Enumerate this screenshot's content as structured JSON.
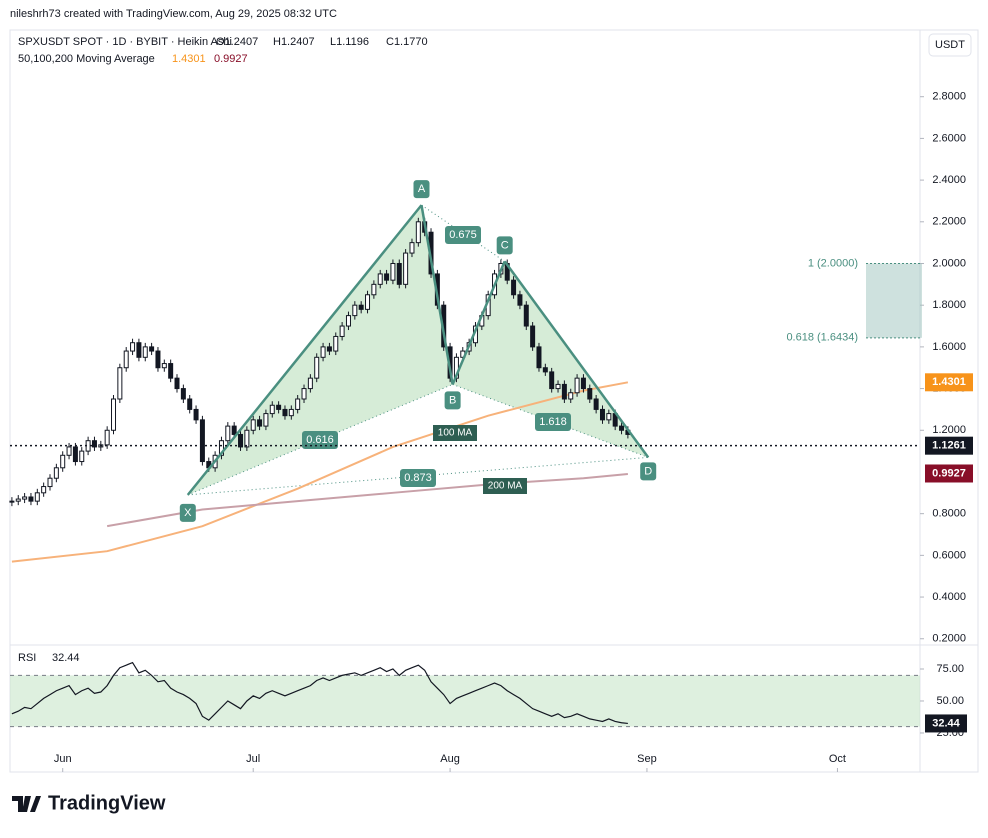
{
  "header": {
    "credit": "nileshrh73 created with TradingView.com, Aug 29, 2025 08:32 UTC",
    "symbol": "SPXUSDT SPOT · 1D · BYBIT · Heikin Ashi",
    "open": "O1.2407",
    "high": "H1.2407",
    "low": "L1.1196",
    "close": "C1.1770",
    "ma_label": "50,100,200 Moving Average",
    "currency": "USDT",
    "logo": "TradingView"
  },
  "chart_data": [
    {
      "type": "candlestick",
      "xlim": [
        -0.3,
        143
      ],
      "ylim": [
        0.17,
        3.12
      ],
      "xticks": [
        {
          "value": 8,
          "label": "Jun"
        },
        {
          "value": 38,
          "label": "Jul"
        },
        {
          "value": 69,
          "label": "Aug"
        },
        {
          "value": 100,
          "label": "Sep"
        },
        {
          "value": 130,
          "label": "Oct"
        }
      ],
      "yticks": [
        {
          "value": 0.2,
          "label": "0.2000"
        },
        {
          "value": 0.4,
          "label": "0.4000"
        },
        {
          "value": 0.6,
          "label": "0.6000"
        },
        {
          "value": 0.8,
          "label": "0.8000"
        },
        {
          "value": 1.2,
          "label": "1.2000"
        },
        {
          "value": 1.4,
          "label": "1.4000"
        },
        {
          "value": 1.6,
          "label": "1.6000"
        },
        {
          "value": 1.8,
          "label": "1.8000"
        },
        {
          "value": 2.0,
          "label": "2.0000"
        },
        {
          "value": 2.2,
          "label": "2.2000"
        },
        {
          "value": 2.4,
          "label": "2.4000"
        },
        {
          "value": 2.6,
          "label": "2.6000"
        },
        {
          "value": 2.8,
          "label": "2.8000"
        }
      ],
      "closes": [
        0.86,
        0.87,
        0.88,
        0.86,
        0.9,
        0.93,
        0.97,
        1.02,
        1.08,
        1.12,
        1.05,
        1.1,
        1.15,
        1.12,
        1.13,
        1.2,
        1.35,
        1.5,
        1.58,
        1.62,
        1.55,
        1.6,
        1.58,
        1.5,
        1.52,
        1.45,
        1.4,
        1.35,
        1.3,
        1.25,
        1.05,
        1.02,
        1.08,
        1.15,
        1.22,
        1.18,
        1.12,
        1.2,
        1.25,
        1.22,
        1.28,
        1.32,
        1.3,
        1.27,
        1.3,
        1.35,
        1.4,
        1.45,
        1.55,
        1.6,
        1.58,
        1.65,
        1.7,
        1.75,
        1.8,
        1.78,
        1.85,
        1.9,
        1.95,
        1.92,
        2.0,
        1.9,
        2.05,
        2.1,
        2.2,
        2.15,
        1.95,
        1.8,
        1.6,
        1.45,
        1.55,
        1.58,
        1.62,
        1.7,
        1.75,
        1.85,
        1.95,
        2.0,
        1.92,
        1.85,
        1.8,
        1.7,
        1.6,
        1.5,
        1.48,
        1.4,
        1.42,
        1.35,
        1.38,
        1.45,
        1.4,
        1.35,
        1.3,
        1.25,
        1.28,
        1.22,
        1.2,
        1.18
      ],
      "up_color": "#ffffff",
      "down_color": "#131722",
      "moving_averages": [
        {
          "name": "100 MA",
          "color": "#f7b27a",
          "value": 1.4301,
          "x": [
            0,
            15,
            30,
            45,
            60,
            75,
            90,
            97
          ],
          "values": [
            0.57,
            0.62,
            0.74,
            0.92,
            1.12,
            1.27,
            1.39,
            1.43
          ]
        },
        {
          "name": "200 MA",
          "color": "#c8a0a8",
          "value": 0.9927,
          "x": [
            15,
            30,
            45,
            60,
            75,
            90,
            97
          ],
          "values": [
            0.74,
            0.82,
            0.86,
            0.9,
            0.94,
            0.97,
            0.99
          ]
        }
      ],
      "last_price": 1.1261,
      "pattern": {
        "points": [
          {
            "label": "X",
            "x": 27.7,
            "y": 0.89
          },
          {
            "label": "A",
            "x": 64.5,
            "y": 2.28
          },
          {
            "label": "B",
            "x": 69.4,
            "y": 1.42
          },
          {
            "label": "C",
            "x": 77.6,
            "y": 2.01
          },
          {
            "label": "D",
            "x": 100.2,
            "y": 1.07
          }
        ],
        "ratios": [
          0.616,
          0.675,
          1.618,
          0.873
        ]
      },
      "targets": [
        {
          "value": 2.0,
          "label": "1 (2.0000)"
        },
        {
          "value": 1.6434,
          "label": "0.618 (1.6434)"
        }
      ]
    },
    {
      "type": "line",
      "title": "RSI",
      "current": 32.44,
      "xlim": [
        -0.3,
        143
      ],
      "ylim": [
        15.6,
        91.4
      ],
      "yticks": [
        {
          "value": 75,
          "label": "75.00"
        },
        {
          "value": 50,
          "label": "50.00"
        },
        {
          "value": 25,
          "label": "25.00"
        }
      ],
      "band": [
        30,
        70
      ],
      "color": "#131722",
      "values": [
        40,
        42,
        45,
        44,
        48,
        52,
        55,
        58,
        60,
        62,
        55,
        58,
        60,
        56,
        57,
        62,
        70,
        76,
        78,
        80,
        72,
        74,
        70,
        65,
        66,
        60,
        57,
        55,
        52,
        48,
        38,
        35,
        40,
        45,
        50,
        47,
        44,
        50,
        54,
        52,
        56,
        58,
        56,
        54,
        56,
        58,
        60,
        62,
        66,
        68,
        66,
        68,
        70,
        71,
        72,
        70,
        72,
        74,
        76,
        73,
        75,
        70,
        74,
        76,
        78,
        74,
        65,
        60,
        55,
        48,
        52,
        54,
        56,
        58,
        60,
        62,
        64,
        62,
        58,
        55,
        52,
        48,
        44,
        42,
        40,
        38,
        40,
        37,
        38,
        40,
        38,
        36,
        35,
        34,
        36,
        34,
        33,
        32.44
      ]
    }
  ]
}
